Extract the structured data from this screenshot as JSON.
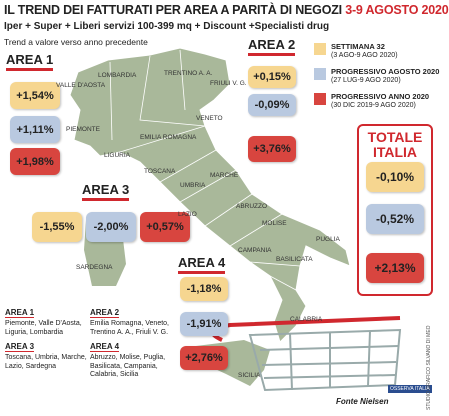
{
  "header": {
    "title": "IL TREND DEI FATTURATI PER AREA A PARITÀ DI NEGOZI",
    "title_date": "3-9 AGOSTO 2020",
    "subtitle": "Iper + Super + Liberi servizi 100-399 mq + Discount +Specialisti drug",
    "note": "Trend a valore verso anno precedente"
  },
  "legend": [
    {
      "label": "SETTIMANA 32",
      "period": "(3 AGO-9 AGO 2020)",
      "color": "#f6d690"
    },
    {
      "label": "PROGRESSIVO AGOSTO 2020",
      "period": "(27 LUG-9 AGO 2020)",
      "color": "#b9c9e0"
    },
    {
      "label": "PROGRESSIVO ANNO 2020",
      "period": "(30 DIC 2019-9 AGO 2020)",
      "color": "#d8453f"
    }
  ],
  "areas": [
    {
      "name": "AREA 1",
      "values": [
        "+1,54%",
        "+1,11%",
        "+1,98%"
      ]
    },
    {
      "name": "AREA 2",
      "values": [
        "+0,15%",
        "-0,09%",
        "+3,76%"
      ]
    },
    {
      "name": "AREA 3",
      "values": [
        "-1,55%",
        "-2,00%",
        "+0,57%"
      ]
    },
    {
      "name": "AREA 4",
      "values": [
        "-1,18%",
        "-1,91%",
        "+2,76%"
      ]
    }
  ],
  "total": {
    "name": "TOTALE ITALIA",
    "values": [
      "-0,10%",
      "-0,52%",
      "+2,13%"
    ]
  },
  "regions": [
    "VALLE D'AOSTA",
    "LOMBARDIA",
    "PIEMONTE",
    "LIGURIA",
    "TRENTINO A. A.",
    "FRIULI V. G.",
    "VENETO",
    "EMILIA ROMAGNA",
    "TOSCANA",
    "UMBRIA",
    "MARCHE",
    "LAZIO",
    "ABRUZZO",
    "MOLISE",
    "PUGLIA",
    "CAMPANIA",
    "BASILICATA",
    "CALABRIA",
    "SICILIA",
    "SARDEGNA"
  ],
  "footer": {
    "areas": [
      {
        "name": "AREA 1",
        "regions": "Piemonte, Valle D'Aosta, Liguria, Lombardia"
      },
      {
        "name": "AREA 2",
        "regions": "Emilia Romagna, Veneto, Trentino A. A., Friuli V. G."
      },
      {
        "name": "AREA 3",
        "regions": "Toscana, Umbria, Marche, Lazio, Sardegna"
      },
      {
        "name": "AREA 4",
        "regions": "Abruzzo, Molise, Puglia, Basilicata, Campania, Calabria, Sicilia"
      }
    ],
    "source": "Fonte Nielsen",
    "credit": "STUDIO GRAFICO SILVANO DI MEO",
    "brand": "OSSERVA ITALIA"
  }
}
